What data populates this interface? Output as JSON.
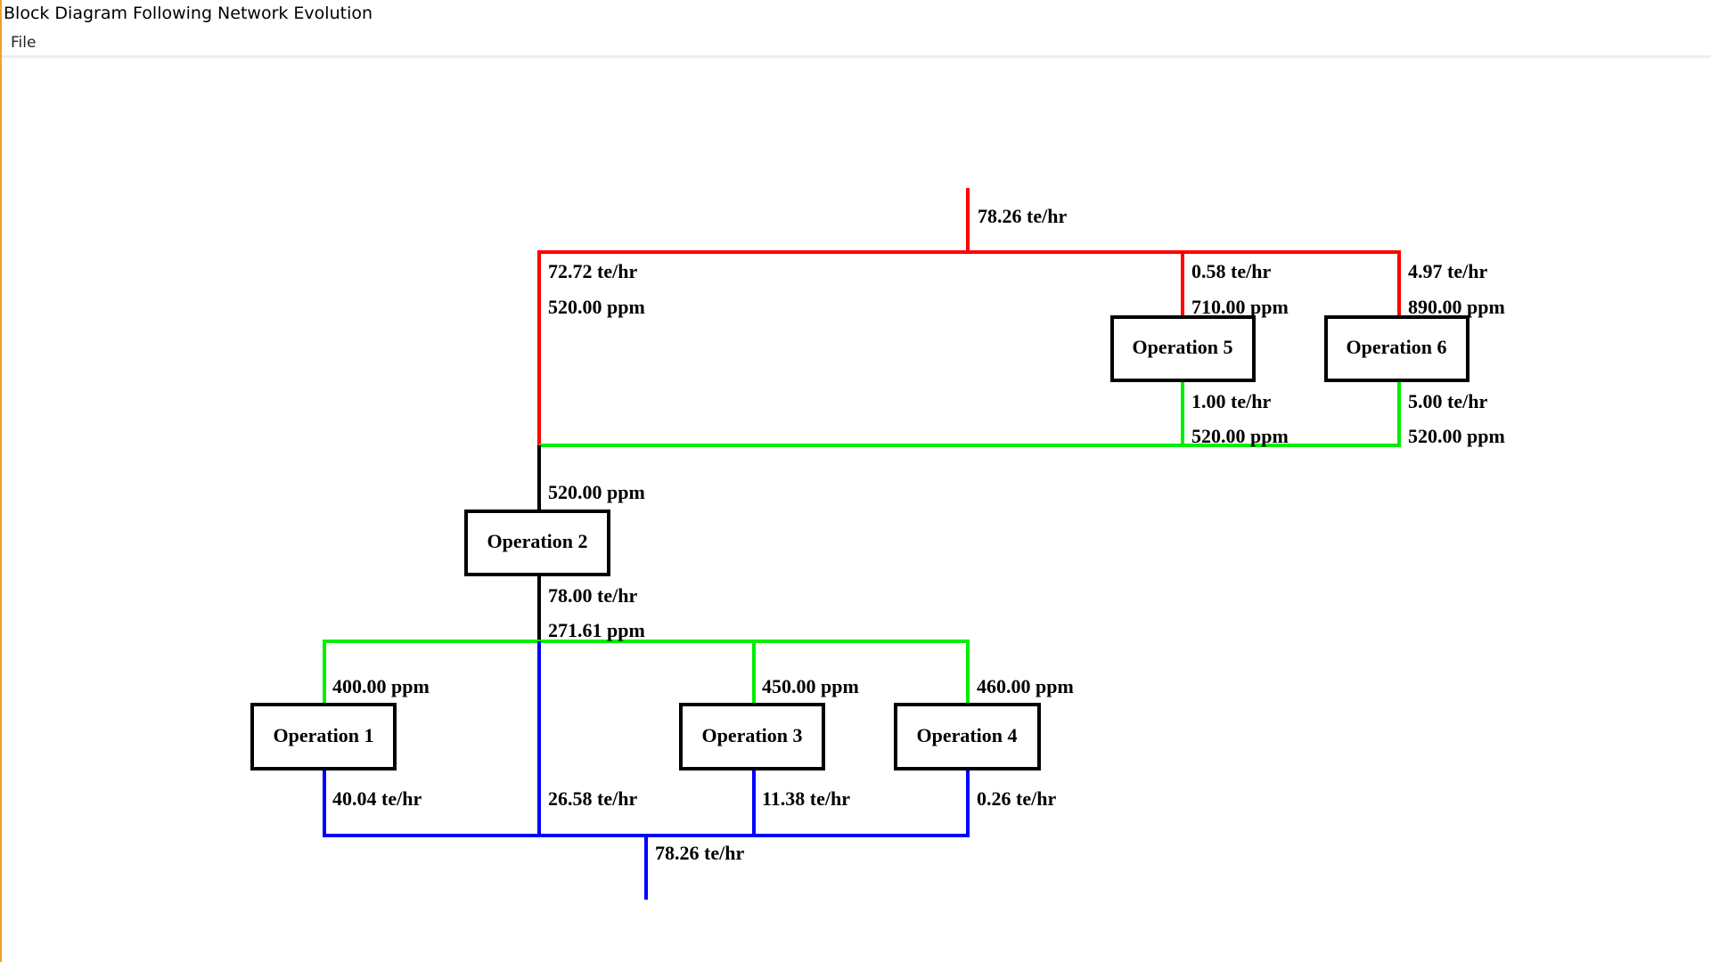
{
  "window": {
    "title": "Block Diagram Following Network Evolution"
  },
  "menu": {
    "file": "File"
  },
  "colors": {
    "freshwater": "#ff0000",
    "regenerated": "#00ee00",
    "wastewater": "#0000ff",
    "block": "#000000"
  },
  "operations": {
    "op1": "Operation 1",
    "op2": "Operation 2",
    "op3": "Operation 3",
    "op4": "Operation 4",
    "op5": "Operation 5",
    "op6": "Operation 6"
  },
  "labels": {
    "fresh_total": "78.26 te/hr",
    "fresh_to_op2_flow": "72.72 te/hr",
    "fresh_to_op2_conc": "520.00 ppm",
    "fresh_to_op5_flow": "0.58 te/hr",
    "fresh_to_op5_conc": "710.00 ppm",
    "fresh_to_op6_flow": "4.97 te/hr",
    "fresh_to_op6_conc": "890.00 ppm",
    "op5_out_flow": "1.00 te/hr",
    "op5_out_conc": "520.00 ppm",
    "op6_out_flow": "5.00 te/hr",
    "op6_out_conc": "520.00 ppm",
    "op2_in_conc": "520.00 ppm",
    "op2_out_flow": "78.00 te/hr",
    "op2_out_conc": "271.61 ppm",
    "op1_in_conc": "400.00 ppm",
    "op3_in_conc": "450.00 ppm",
    "op4_in_conc": "460.00 ppm",
    "op1_out_flow": "40.04 te/hr",
    "bypass_flow": "26.58 te/hr",
    "op3_out_flow": "11.38 te/hr",
    "op4_out_flow": "0.26 te/hr",
    "waste_total": "78.26 te/hr"
  }
}
